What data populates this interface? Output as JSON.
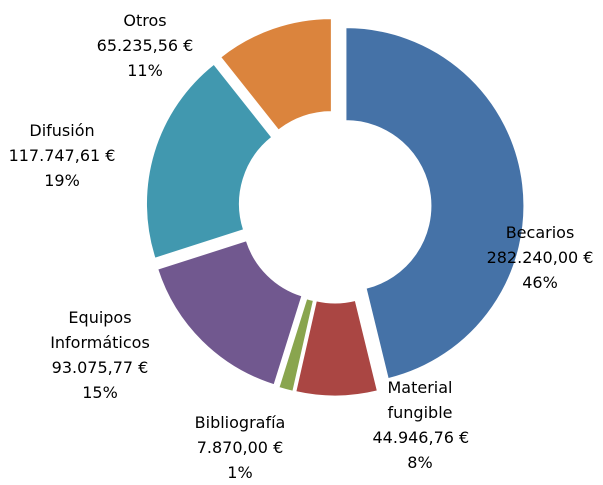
{
  "chart_data": {
    "type": "donut",
    "categories": [
      "Becarios",
      "Material fungible",
      "Bibliografía",
      "Equipos Informáticos",
      "Difusión",
      "Otros"
    ],
    "values": [
      282240.0,
      44946.76,
      7870.0,
      93075.77,
      117747.61,
      65235.56
    ],
    "value_labels": [
      "282.240,00 €",
      "44.946,76 €",
      "7.870,00 €",
      "93.075,77 €",
      "117.747,61 €",
      "65.235,56 €"
    ],
    "percentages": [
      46,
      8,
      1,
      15,
      19,
      11
    ],
    "percentage_labels": [
      "46%",
      "8%",
      "1%",
      "15%",
      "19%",
      "11%"
    ],
    "colors": [
      "#4572a7",
      "#aa4643",
      "#89a54e",
      "#71588f",
      "#4198af",
      "#db843d"
    ]
  }
}
